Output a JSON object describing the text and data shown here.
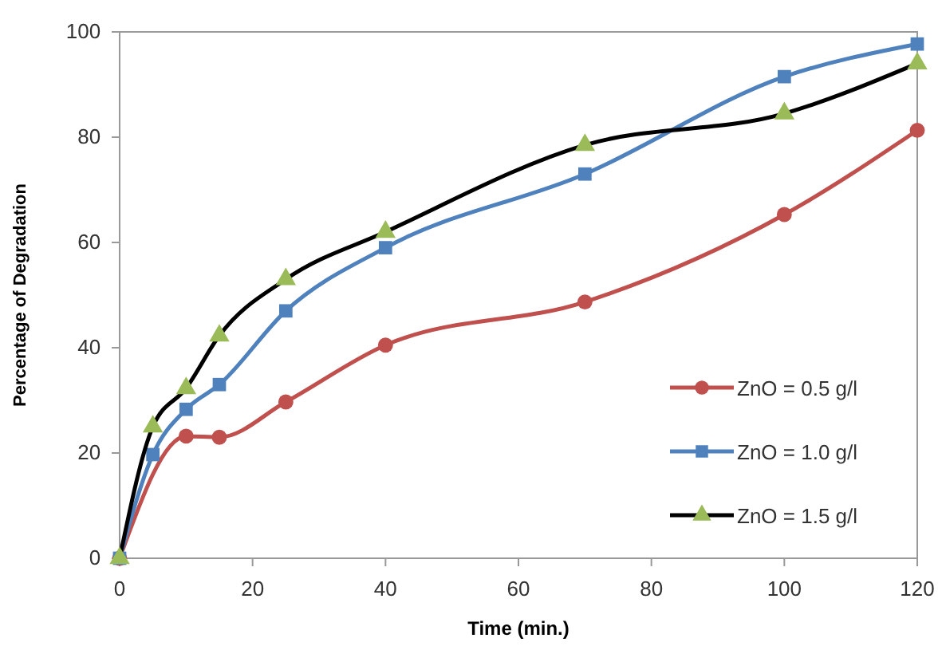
{
  "chart_data": {
    "type": "line",
    "xlabel": "Time (min.)",
    "ylabel": "Percentage of Degradation",
    "x": [
      0,
      5,
      10,
      15,
      25,
      40,
      70,
      100,
      120
    ],
    "xlim": [
      0,
      120
    ],
    "xticks": [
      0,
      20,
      40,
      60,
      80,
      100,
      120
    ],
    "ylim": [
      0,
      100
    ],
    "yticks": [
      0,
      20,
      40,
      60,
      80,
      100
    ],
    "grid": false,
    "legend": "bottom right",
    "series": [
      {
        "name": "ZnO = 0.5 g/l",
        "color": "#c0504d",
        "marker": "circle",
        "values": [
          0,
          null,
          23.2,
          23,
          29.7,
          40.5,
          48.7,
          65.3,
          81.3
        ]
      },
      {
        "name": "ZnO = 1.0 g/l",
        "color": "#4f81bd",
        "marker": "square",
        "values": [
          0,
          19.7,
          28.3,
          33,
          47,
          59,
          73,
          91.5,
          97.7
        ]
      },
      {
        "name": "ZnO = 1.5 g/l",
        "color": "#000000",
        "colors": [
          "#9bbb59",
          "#9bbb59",
          "#9bbb59",
          "#9bbb59",
          "#9bbb59",
          "#9bbb59",
          "#9bbb59",
          "#9bbb59",
          "#9bbb59"
        ],
        "marker": "triangle",
        "values": [
          0,
          25,
          32.3,
          42.3,
          53,
          62,
          78.5,
          84.5,
          94
        ]
      }
    ]
  }
}
